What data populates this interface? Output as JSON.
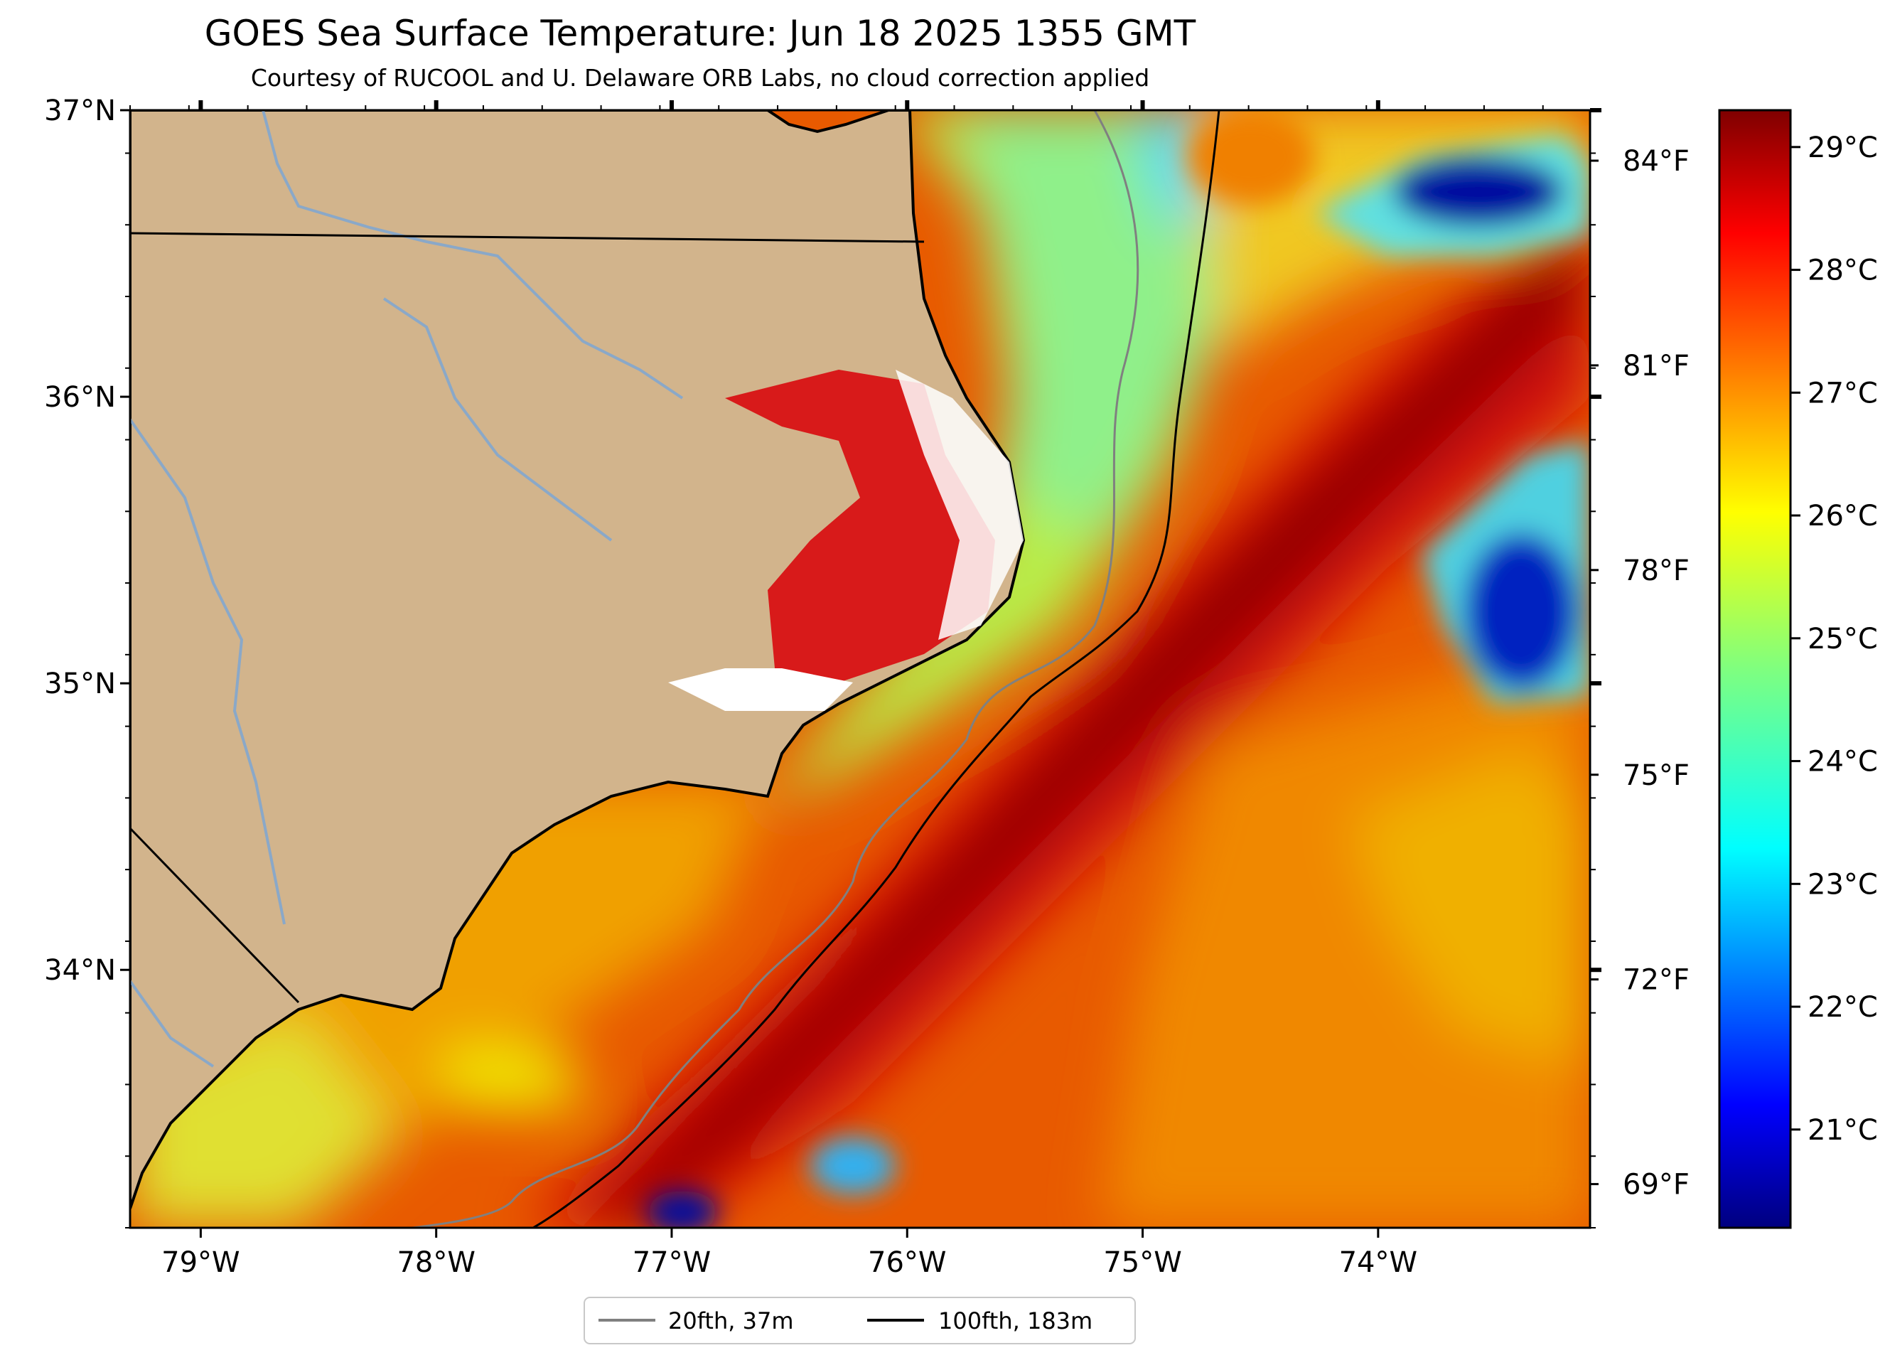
{
  "title": "GOES Sea Surface Temperature: Jun 18 2025 1355 GMT",
  "subtitle": "Courtesy of RUCOOL and U. Delaware ORB Labs, no cloud correction applied",
  "map": {
    "lon_range": [
      -79.3,
      -73.1
    ],
    "lat_range": [
      33.1,
      37.0
    ],
    "lon_ticks": [
      {
        "value": -79,
        "label": "79°W"
      },
      {
        "value": -78,
        "label": "78°W"
      },
      {
        "value": -77,
        "label": "77°W"
      },
      {
        "value": -76,
        "label": "76°W"
      },
      {
        "value": -75,
        "label": "75°W"
      },
      {
        "value": -74,
        "label": "74°W"
      }
    ],
    "lat_ticks": [
      {
        "value": 37,
        "label": "37°N"
      },
      {
        "value": 36,
        "label": "36°N"
      },
      {
        "value": 35,
        "label": "35°N"
      },
      {
        "value": 34,
        "label": "34°N"
      }
    ],
    "colors": {
      "land": "#d2b48c",
      "gulf_stream": "#b00000",
      "shelf_water": "#f0a000",
      "nearshore": "#c8f040",
      "cool_eddy": "#0030d0"
    }
  },
  "fahrenheit_axis": {
    "ticks": [
      {
        "value": 84,
        "label": "84°F"
      },
      {
        "value": 81,
        "label": "81°F"
      },
      {
        "value": 78,
        "label": "78°F"
      },
      {
        "value": 75,
        "label": "75°F"
      },
      {
        "value": 72,
        "label": "72°F"
      },
      {
        "value": 69,
        "label": "69°F"
      }
    ]
  },
  "colorbar": {
    "range_c": [
      20.2,
      29.3
    ],
    "colormap": "jet",
    "ticks": [
      {
        "value": 29,
        "label": "29°C"
      },
      {
        "value": 28,
        "label": "28°C"
      },
      {
        "value": 27,
        "label": "27°C"
      },
      {
        "value": 26,
        "label": "26°C"
      },
      {
        "value": 25,
        "label": "25°C"
      },
      {
        "value": 24,
        "label": "24°C"
      },
      {
        "value": 23,
        "label": "23°C"
      },
      {
        "value": 22,
        "label": "22°C"
      },
      {
        "value": 21,
        "label": "21°C"
      }
    ]
  },
  "legend": {
    "items": [
      {
        "label": "20fth, 37m",
        "color": "#808080"
      },
      {
        "label": "100fth, 183m",
        "color": "#000000"
      }
    ]
  }
}
